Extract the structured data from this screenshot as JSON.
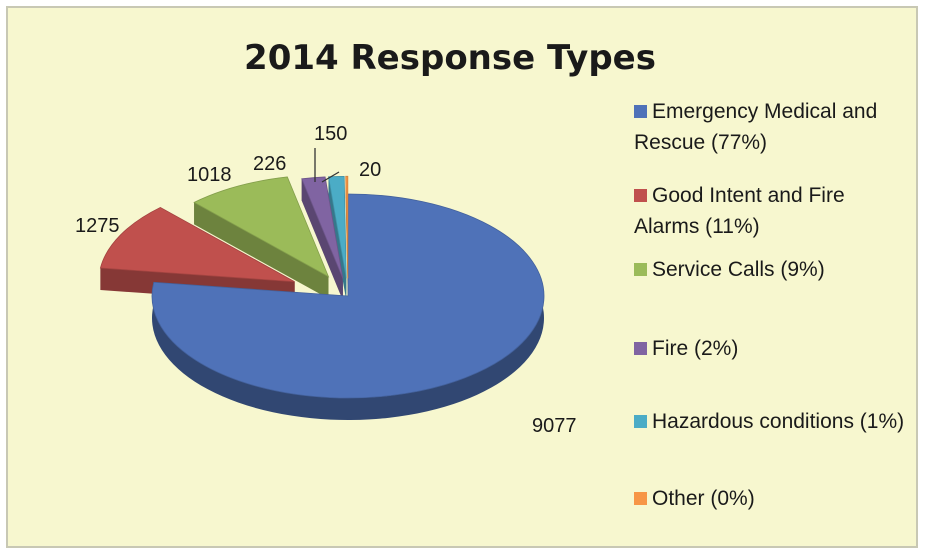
{
  "chart_data": {
    "type": "pie",
    "title": "2014 Response Types",
    "slices": [
      {
        "name": "Emergency Medical and Rescue (77%)",
        "value": 9077,
        "label": "9077",
        "color": "#4f72b8"
      },
      {
        "name": "Good Intent and Fire Alarms (11%)",
        "value": 1275,
        "label": "1275",
        "color": "#c0504d"
      },
      {
        "name": "Service Calls (9%)",
        "value": 1018,
        "label": "1018",
        "color": "#9bbb59"
      },
      {
        "name": "Fire (2%)",
        "value": 226,
        "label": "226",
        "color": "#8064a2"
      },
      {
        "name": "Hazardous conditions (1%)",
        "value": 150,
        "label": "150",
        "color": "#4bacc6"
      },
      {
        "name": "Other (0%)",
        "value": 20,
        "label": "20",
        "color": "#f79646"
      }
    ],
    "legend_position": "right",
    "style": "3d-exploded"
  }
}
